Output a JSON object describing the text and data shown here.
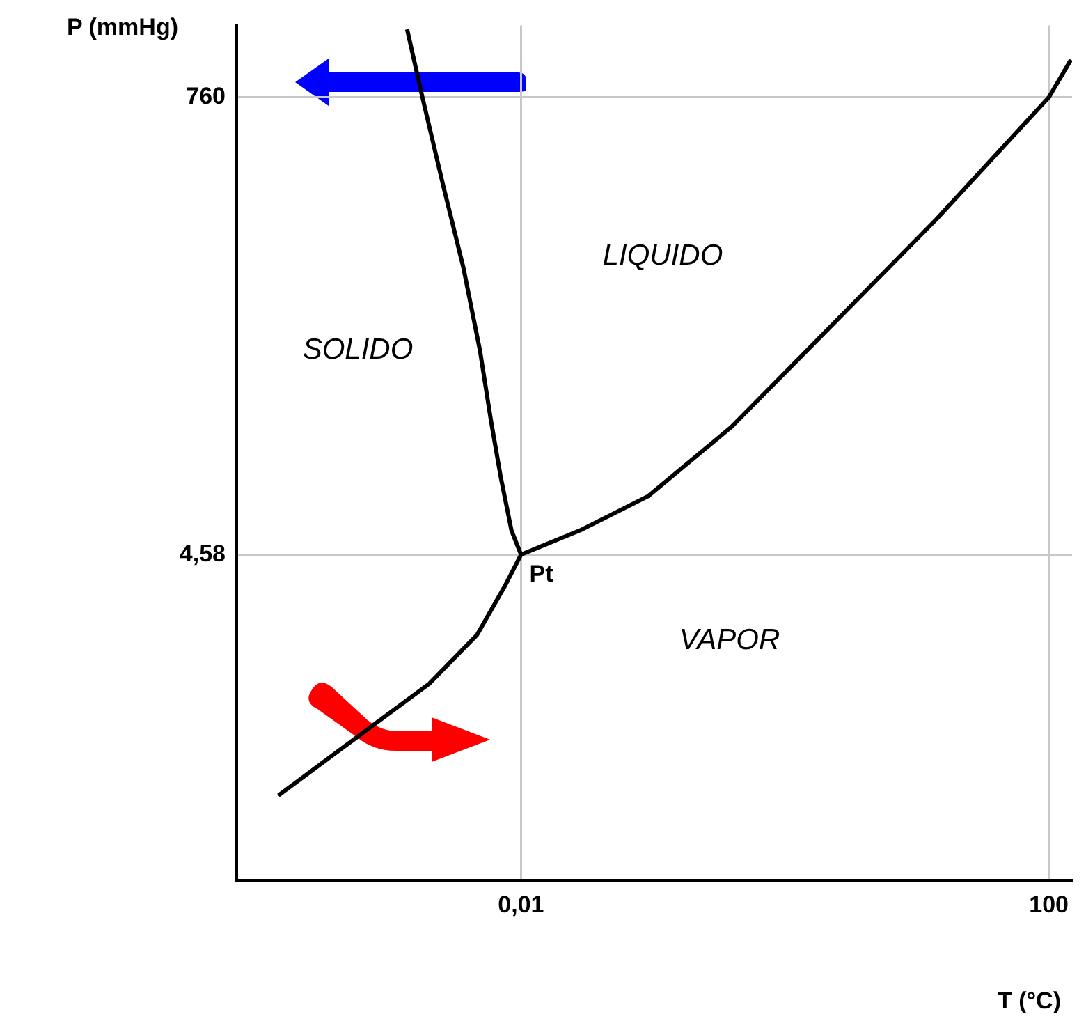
{
  "chart_data": {
    "type": "line",
    "xlabel": "T (°C)",
    "ylabel": "P (mmHg)",
    "log": "xy",
    "grid": true,
    "marker": "none",
    "line_style": "solid",
    "legend": false,
    "xlim": [
      7e-05,
      150
    ],
    "xticks": [
      {
        "value": 0.01,
        "label": "0,01"
      },
      100
    ],
    "ylim": [
      0.12,
      1700
    ],
    "yticks": [
      {
        "value": 4.58,
        "label": "4,58"
      },
      760
    ],
    "series": [
      {
        "color": "#000000",
        "x": [
          0.00137,
          0.00179,
          0.00256,
          0.00366,
          0.00488,
          0.00591,
          0.00698,
          0.00846,
          0.01
        ],
        "values": [
          1626,
          760,
          287,
          113,
          45,
          20.6,
          11.1,
          6.0,
          4.58
        ]
      },
      {
        "color": "#000000",
        "x": [
          0.01,
          0.028,
          0.092,
          0.39,
          2.07,
          14.1,
          100,
          147
        ],
        "values": [
          4.58,
          6.0,
          8.8,
          19,
          56,
          195,
          760,
          1157
        ]
      },
      {
        "color": "#000000",
        "x": [
          0.01,
          0.0075,
          0.00465,
          0.00201,
          0.000145
        ],
        "values": [
          4.58,
          3.2,
          1.87,
          1.08,
          0.31
        ]
      }
    ],
    "annotations": [
      {
        "text": "Pt",
        "x": 0.01,
        "y": 4.58
      },
      "SOLIDO",
      "LIQUIDO",
      "VAPOR"
    ]
  }
}
